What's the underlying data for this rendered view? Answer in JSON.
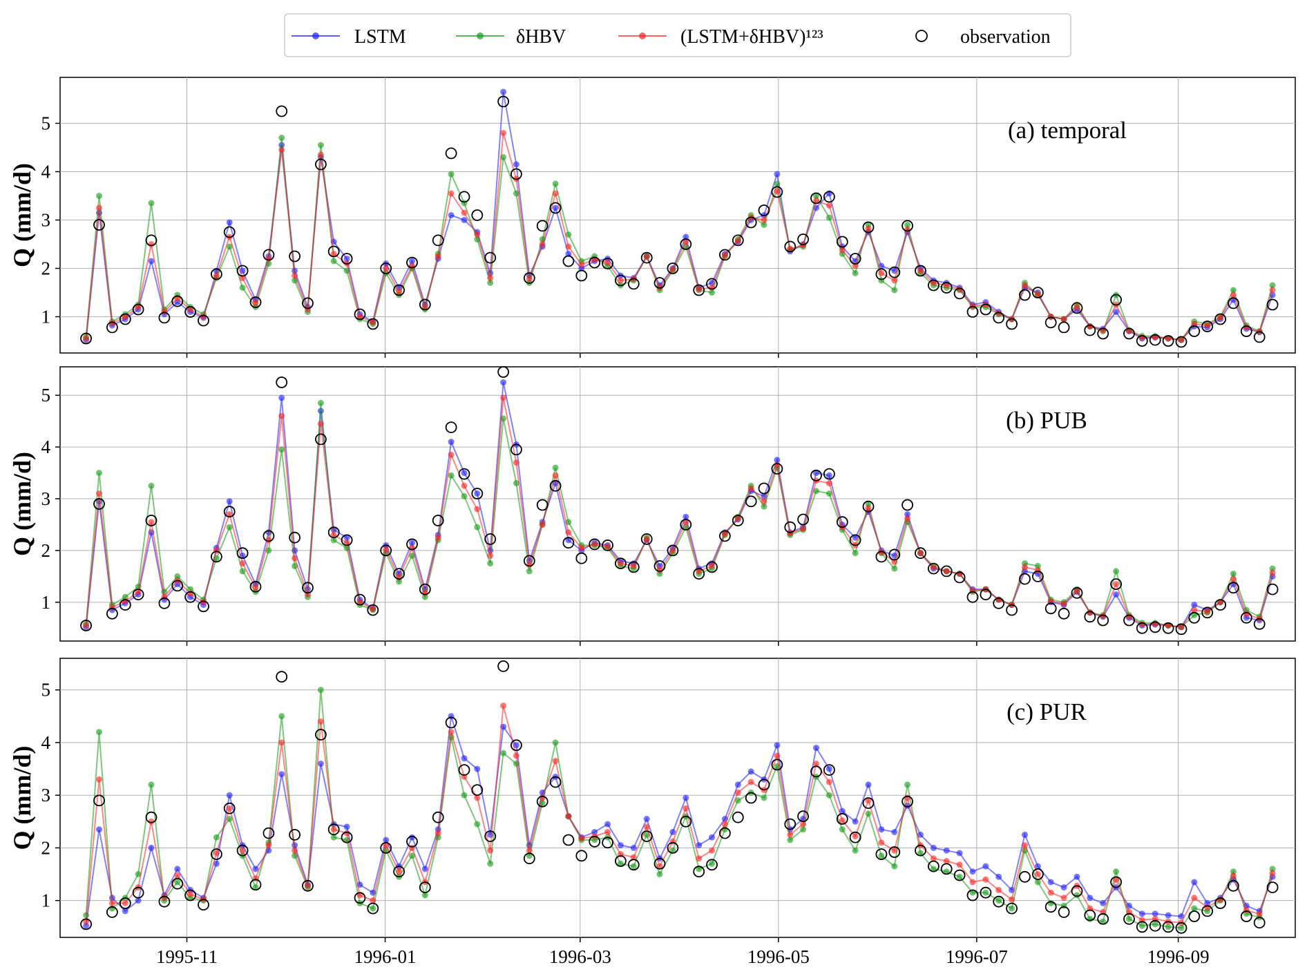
{
  "chart_data": {
    "type": "line",
    "legend": {
      "placement": "top-center",
      "entries": [
        {
          "label": "LSTM",
          "color": "#1a1aff",
          "marker": "dot"
        },
        {
          "label": "δHBV",
          "color": "#119911",
          "marker": "dot"
        },
        {
          "label": "(LSTM+δHBV)¹²³",
          "color": "#ff2020",
          "marker": "dot"
        },
        {
          "label": "observation",
          "color": "#000000",
          "marker": "open-circle"
        }
      ]
    },
    "x_tick_labels": [
      "1995-11",
      "1996-01",
      "1996-03",
      "1996-05",
      "1996-07",
      "1996-09"
    ],
    "x_tick_days": [
      31,
      92,
      152,
      213,
      274,
      336
    ],
    "x_range_days": [
      -8,
      372
    ],
    "x_origin": "1995-10-01",
    "observation": [
      0.55,
      2.9,
      0.78,
      0.95,
      1.15,
      2.58,
      0.98,
      1.32,
      1.1,
      0.92,
      1.88,
      2.75,
      1.95,
      1.3,
      2.28,
      5.25,
      2.25,
      1.28,
      4.15,
      2.35,
      2.2,
      1.05,
      0.85,
      2.0,
      1.55,
      2.12,
      1.25,
      2.58,
      4.38,
      3.48,
      3.1,
      2.22,
      5.45,
      3.95,
      1.8,
      2.88,
      3.25,
      2.15,
      1.85,
      2.12,
      2.1,
      1.75,
      1.68,
      2.22,
      1.7,
      2.0,
      2.5,
      1.55,
      1.68,
      2.28,
      2.58,
      2.95,
      3.2,
      3.58,
      2.45,
      2.6,
      3.45,
      3.48,
      2.55,
      2.2,
      2.85,
      1.88,
      1.92,
      2.88,
      1.95,
      1.65,
      1.6,
      1.48,
      1.1,
      1.15,
      0.98,
      0.85,
      1.45,
      1.5,
      0.88,
      0.78,
      1.18,
      0.72,
      0.65,
      1.35,
      0.65,
      0.5,
      0.52,
      0.5,
      0.48,
      0.7,
      0.8,
      0.95,
      1.28,
      0.7,
      0.58,
      1.25
    ],
    "panels": [
      {
        "annotation": "(a) temporal",
        "ylabel": "Q (mm/d)",
        "ylim": [
          0.25,
          5.95
        ],
        "yticks": [
          1,
          2,
          3,
          4,
          5
        ],
        "series": [
          {
            "name": "LSTM",
            "values": [
              0.52,
              3.15,
              0.82,
              0.95,
              1.15,
              2.15,
              1.05,
              1.3,
              1.1,
              0.98,
              1.95,
              2.95,
              1.95,
              1.35,
              2.25,
              4.55,
              1.95,
              1.2,
              4.3,
              2.55,
              2.2,
              1.05,
              0.9,
              2.1,
              1.6,
              2.15,
              1.25,
              2.2,
              3.1,
              3.0,
              2.75,
              1.9,
              5.65,
              4.15,
              1.85,
              2.45,
              3.25,
              2.3,
              2.0,
              2.15,
              2.2,
              1.85,
              1.8,
              2.25,
              1.65,
              2.0,
              2.65,
              1.6,
              1.7,
              2.3,
              2.55,
              3.0,
              3.1,
              3.95,
              2.35,
              2.5,
              3.25,
              3.55,
              2.45,
              2.15,
              2.75,
              2.05,
              1.95,
              2.75,
              2.0,
              1.75,
              1.7,
              1.6,
              1.25,
              1.3,
              1.1,
              0.95,
              1.6,
              1.5,
              1.0,
              0.95,
              1.15,
              0.8,
              0.75,
              1.1,
              0.7,
              0.55,
              0.57,
              0.55,
              0.52,
              0.8,
              0.78,
              0.95,
              1.35,
              0.75,
              0.68,
              1.45
            ]
          },
          {
            "name": "δHBV",
            "values": [
              0.58,
              3.5,
              0.9,
              1.05,
              1.25,
              3.35,
              1.15,
              1.45,
              1.2,
              1.05,
              1.8,
              2.45,
              1.6,
              1.2,
              2.1,
              4.7,
              1.75,
              1.1,
              4.55,
              2.15,
              1.95,
              0.95,
              0.85,
              1.9,
              1.45,
              2.0,
              1.15,
              2.3,
              3.95,
              3.35,
              2.6,
              1.7,
              4.3,
              3.55,
              1.7,
              2.6,
              3.75,
              2.7,
              2.15,
              2.25,
              2.05,
              1.65,
              1.75,
              2.25,
              1.55,
              1.95,
              2.45,
              1.55,
              1.5,
              2.25,
              2.6,
              3.1,
              2.9,
              3.75,
              2.4,
              2.45,
              3.5,
              3.05,
              2.3,
              1.9,
              2.9,
              1.75,
              1.55,
              2.9,
              1.9,
              1.65,
              1.6,
              1.55,
              1.2,
              1.2,
              1.05,
              0.95,
              1.7,
              1.45,
              1.0,
              0.95,
              1.25,
              0.8,
              0.7,
              1.45,
              0.72,
              0.6,
              0.6,
              0.55,
              0.52,
              0.9,
              0.85,
              1.0,
              1.55,
              0.82,
              0.7,
              1.65
            ]
          },
          {
            "name": "(LSTM+δHBV)¹²³",
            "values": [
              0.55,
              3.25,
              0.86,
              1.0,
              1.2,
              2.5,
              1.1,
              1.38,
              1.15,
              1.0,
              1.85,
              2.65,
              1.8,
              1.28,
              2.2,
              4.45,
              1.85,
              1.15,
              4.35,
              2.3,
              2.1,
              1.0,
              0.88,
              2.0,
              1.52,
              2.05,
              1.2,
              2.25,
              3.55,
              3.15,
              2.7,
              1.8,
              4.8,
              3.85,
              1.78,
              2.5,
              3.55,
              2.45,
              2.08,
              2.18,
              2.12,
              1.75,
              1.78,
              2.24,
              1.6,
              1.98,
              2.55,
              1.57,
              1.6,
              2.27,
              2.57,
              3.05,
              3.0,
              3.6,
              2.4,
              2.48,
              3.4,
              3.3,
              2.38,
              2.05,
              2.82,
              1.9,
              1.75,
              2.8,
              1.95,
              1.7,
              1.65,
              1.57,
              1.22,
              1.25,
              1.07,
              0.95,
              1.65,
              1.47,
              1.0,
              0.95,
              1.2,
              0.8,
              0.72,
              1.25,
              0.71,
              0.57,
              0.58,
              0.55,
              0.52,
              0.85,
              0.82,
              0.98,
              1.45,
              0.78,
              0.69,
              1.55
            ]
          }
        ]
      },
      {
        "annotation": "(b) PUB",
        "ylabel": "Q (mm/d)",
        "ylim": [
          0.25,
          5.55
        ],
        "yticks": [
          1,
          2,
          3,
          4,
          5
        ],
        "series": [
          {
            "name": "LSTM",
            "values": [
              0.52,
              2.95,
              0.85,
              0.98,
              1.15,
              2.35,
              1.05,
              1.35,
              1.1,
              0.95,
              2.05,
              2.95,
              1.9,
              1.35,
              2.35,
              4.95,
              2.0,
              1.25,
              4.7,
              2.4,
              2.25,
              1.05,
              0.88,
              2.1,
              1.55,
              2.15,
              1.25,
              2.3,
              4.1,
              3.5,
              3.1,
              2.0,
              5.25,
              4.05,
              1.8,
              2.55,
              3.3,
              2.2,
              2.0,
              2.15,
              2.1,
              1.8,
              1.75,
              2.2,
              1.7,
              2.05,
              2.65,
              1.65,
              1.75,
              2.35,
              2.6,
              3.15,
              3.05,
              3.75,
              2.35,
              2.45,
              3.5,
              3.45,
              2.5,
              2.25,
              2.75,
              2.0,
              1.9,
              2.7,
              1.95,
              1.65,
              1.6,
              1.55,
              1.25,
              1.25,
              1.05,
              0.95,
              1.6,
              1.55,
              1.0,
              0.95,
              1.2,
              0.8,
              0.72,
              1.15,
              0.7,
              0.55,
              0.57,
              0.55,
              0.52,
              0.95,
              0.85,
              1.0,
              1.35,
              0.7,
              0.65,
              1.5
            ]
          },
          {
            "name": "δHBV",
            "values": [
              0.58,
              3.5,
              0.95,
              1.1,
              1.3,
              3.25,
              1.2,
              1.5,
              1.25,
              1.05,
              1.85,
              2.45,
              1.6,
              1.2,
              2.0,
              3.95,
              1.7,
              1.1,
              4.85,
              2.2,
              2.05,
              0.95,
              0.85,
              1.95,
              1.4,
              1.9,
              1.1,
              2.2,
              3.45,
              3.05,
              2.45,
              1.75,
              4.55,
              3.3,
              1.6,
              2.5,
              3.6,
              2.55,
              2.1,
              2.1,
              2.05,
              1.7,
              1.65,
              2.25,
              1.55,
              1.95,
              2.45,
              1.55,
              1.65,
              2.3,
              2.65,
              3.25,
              2.85,
              3.6,
              2.3,
              2.4,
              3.15,
              3.1,
              2.4,
              1.95,
              2.9,
              1.95,
              1.65,
              2.55,
              1.95,
              1.7,
              1.6,
              1.55,
              1.2,
              1.25,
              1.05,
              0.95,
              1.75,
              1.7,
              1.05,
              1.0,
              1.25,
              0.8,
              0.75,
              1.6,
              0.75,
              0.6,
              0.6,
              0.55,
              0.52,
              0.75,
              0.8,
              1.0,
              1.55,
              0.85,
              0.72,
              1.65
            ]
          },
          {
            "name": "(LSTM+δHBV)¹²³",
            "values": [
              0.55,
              3.1,
              0.9,
              1.02,
              1.2,
              2.55,
              1.1,
              1.42,
              1.17,
              1.0,
              2.0,
              2.7,
              1.75,
              1.28,
              2.2,
              4.6,
              1.85,
              1.15,
              4.45,
              2.3,
              2.15,
              1.0,
              0.87,
              2.02,
              1.48,
              2.05,
              1.18,
              2.25,
              3.85,
              3.25,
              2.8,
              1.9,
              4.95,
              3.7,
              1.72,
              2.5,
              3.45,
              2.35,
              2.05,
              2.12,
              2.08,
              1.75,
              1.7,
              2.22,
              1.62,
              2.0,
              2.55,
              1.6,
              1.7,
              2.32,
              2.62,
              3.2,
              2.95,
              3.65,
              2.33,
              2.42,
              3.35,
              3.3,
              2.45,
              2.1,
              2.82,
              1.97,
              1.78,
              2.62,
              1.95,
              1.67,
              1.6,
              1.55,
              1.22,
              1.25,
              1.05,
              0.95,
              1.68,
              1.62,
              1.02,
              0.97,
              1.22,
              0.8,
              0.73,
              1.35,
              0.72,
              0.57,
              0.58,
              0.55,
              0.52,
              0.85,
              0.82,
              1.0,
              1.45,
              0.77,
              0.68,
              1.57
            ]
          }
        ]
      },
      {
        "annotation": "(c) PUR",
        "ylabel": "Q (mm/d)",
        "ylim": [
          0.3,
          5.6
        ],
        "yticks": [
          1,
          2,
          3,
          4,
          5
        ],
        "series": [
          {
            "name": "LSTM",
            "values": [
              0.52,
              2.35,
              1.05,
              0.8,
              1.0,
              2.0,
              1.1,
              1.6,
              1.2,
              1.05,
              1.7,
              3.0,
              2.05,
              1.6,
              1.95,
              3.4,
              2.05,
              1.3,
              3.6,
              2.45,
              2.4,
              1.3,
              1.15,
              2.15,
              1.65,
              2.2,
              1.6,
              2.35,
              4.5,
              3.7,
              3.5,
              2.25,
              4.3,
              3.95,
              2.05,
              3.05,
              3.35,
              2.6,
              2.2,
              2.3,
              2.45,
              2.05,
              2.0,
              2.55,
              1.8,
              2.3,
              2.95,
              2.05,
              2.2,
              2.55,
              3.2,
              3.45,
              3.3,
              3.95,
              2.35,
              2.55,
              3.9,
              3.5,
              2.7,
              2.5,
              3.2,
              2.35,
              2.3,
              2.8,
              2.25,
              2.0,
              1.95,
              1.9,
              1.55,
              1.65,
              1.45,
              1.2,
              2.25,
              1.65,
              1.35,
              1.25,
              1.45,
              1.05,
              0.95,
              1.25,
              0.9,
              0.75,
              0.75,
              0.72,
              0.7,
              1.35,
              0.95,
              1.05,
              1.4,
              0.9,
              0.8,
              1.45
            ]
          },
          {
            "name": "δHBV",
            "values": [
              0.72,
              4.2,
              0.85,
              1.05,
              1.5,
              3.2,
              1.0,
              1.35,
              1.05,
              1.0,
              2.2,
              2.55,
              1.85,
              1.25,
              2.1,
              4.5,
              1.85,
              1.25,
              5.0,
              2.2,
              2.15,
              0.95,
              0.85,
              1.95,
              1.45,
              1.85,
              1.1,
              2.2,
              4.1,
              3.0,
              2.45,
              1.7,
              3.8,
              3.6,
              1.85,
              2.85,
              4.0,
              2.6,
              2.15,
              2.15,
              2.2,
              1.7,
              1.65,
              2.25,
              1.5,
              1.95,
              2.6,
              1.6,
              1.7,
              2.35,
              2.9,
              3.05,
              2.95,
              3.55,
              2.15,
              2.35,
              3.35,
              3.0,
              2.35,
              1.95,
              2.65,
              1.85,
              1.65,
              3.2,
              1.9,
              1.6,
              1.55,
              1.45,
              1.15,
              1.15,
              1.0,
              0.85,
              1.95,
              1.35,
              0.95,
              0.9,
              1.1,
              0.65,
              0.6,
              1.55,
              0.65,
              0.52,
              0.55,
              0.5,
              0.48,
              0.85,
              0.8,
              1.0,
              1.55,
              0.75,
              0.68,
              1.6
            ]
          },
          {
            "name": "(LSTM+δHBV)¹²³",
            "values": [
              0.6,
              3.3,
              0.95,
              0.95,
              1.25,
              2.5,
              1.05,
              1.48,
              1.12,
              1.02,
              1.9,
              2.75,
              1.95,
              1.42,
              2.05,
              4.0,
              1.95,
              1.28,
              4.4,
              2.35,
              2.28,
              1.1,
              1.0,
              2.05,
              1.55,
              2.0,
              1.35,
              2.28,
              4.2,
              3.35,
              2.95,
              1.95,
              4.7,
              3.75,
              1.95,
              2.95,
              3.65,
              2.6,
              2.18,
              2.22,
              2.3,
              1.88,
              1.82,
              2.4,
              1.65,
              2.12,
              2.75,
              1.8,
              1.95,
              2.45,
              3.05,
              3.25,
              3.1,
              3.75,
              2.25,
              2.45,
              3.6,
              3.25,
              2.52,
              2.22,
              2.9,
              2.1,
              1.95,
              2.95,
              2.05,
              1.8,
              1.75,
              1.68,
              1.35,
              1.4,
              1.2,
              1.02,
              2.05,
              1.5,
              1.15,
              1.05,
              1.28,
              0.85,
              0.78,
              1.4,
              0.78,
              0.63,
              0.65,
              0.6,
              0.58,
              1.05,
              0.87,
              1.02,
              1.47,
              0.82,
              0.74,
              1.52
            ]
          }
        ]
      }
    ]
  }
}
